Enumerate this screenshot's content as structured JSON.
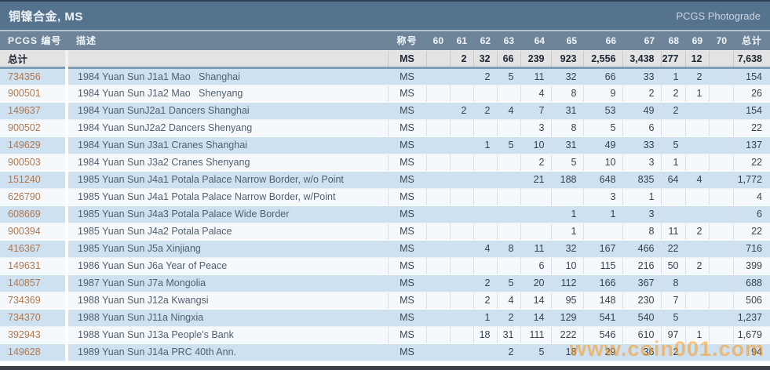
{
  "titlebar": {
    "title": "铜镍合金, MS",
    "right_label": "PCGS Photograde"
  },
  "table": {
    "headers": {
      "pcgs_number": "PCGS 编号",
      "description": "描述",
      "designation": "称号",
      "grades": [
        "60",
        "61",
        "62",
        "63",
        "64",
        "65",
        "66",
        "67",
        "68",
        "69",
        "70"
      ],
      "total": "总计"
    },
    "totals_row": {
      "label": "总计",
      "description": "",
      "designation": "MS",
      "counts": [
        "",
        "2",
        "32",
        "66",
        "239",
        "923",
        "2,556",
        "3,438",
        "277",
        "12",
        ""
      ],
      "total": "7,638"
    },
    "rows": [
      {
        "pcgs_number": "734356",
        "description": "1984 Yuan Sun J1a1 Mao   Shanghai",
        "designation": "MS",
        "counts": [
          "",
          "",
          "2",
          "5",
          "11",
          "32",
          "66",
          "33",
          "1",
          "2",
          ""
        ],
        "total": "154"
      },
      {
        "pcgs_number": "900501",
        "description": "1984 Yuan Sun J1a2 Mao   Shenyang",
        "designation": "MS",
        "counts": [
          "",
          "",
          "",
          "",
          "4",
          "8",
          "9",
          "2",
          "2",
          "1",
          ""
        ],
        "total": "26"
      },
      {
        "pcgs_number": "149637",
        "description": "1984 Yuan SunJ2a1 Dancers Shanghai",
        "designation": "MS",
        "counts": [
          "",
          "2",
          "2",
          "4",
          "7",
          "31",
          "53",
          "49",
          "2",
          "",
          ""
        ],
        "total": "154"
      },
      {
        "pcgs_number": "900502",
        "description": "1984 Yuan SunJ2a2 Dancers Shenyang",
        "designation": "MS",
        "counts": [
          "",
          "",
          "",
          "",
          "3",
          "8",
          "5",
          "6",
          "",
          "",
          ""
        ],
        "total": "22"
      },
      {
        "pcgs_number": "149629",
        "description": "1984 Yuan Sun J3a1 Cranes Shanghai",
        "designation": "MS",
        "counts": [
          "",
          "",
          "1",
          "5",
          "10",
          "31",
          "49",
          "33",
          "5",
          "",
          ""
        ],
        "total": "137"
      },
      {
        "pcgs_number": "900503",
        "description": "1984 Yuan Sun J3a2 Cranes Shenyang",
        "designation": "MS",
        "counts": [
          "",
          "",
          "",
          "",
          "2",
          "5",
          "10",
          "3",
          "1",
          "",
          ""
        ],
        "total": "22"
      },
      {
        "pcgs_number": "151240",
        "description": "1985 Yuan Sun J4a1 Potala Palace Narrow Border, w/o Point",
        "designation": "MS",
        "counts": [
          "",
          "",
          "",
          "",
          "21",
          "188",
          "648",
          "835",
          "64",
          "4",
          ""
        ],
        "total": "1,772"
      },
      {
        "pcgs_number": "626790",
        "description": "1985 Yuan Sun J4a1 Potala Palace Narrow Border, w/Point",
        "designation": "MS",
        "counts": [
          "",
          "",
          "",
          "",
          "",
          "",
          "3",
          "1",
          "",
          "",
          ""
        ],
        "total": "4"
      },
      {
        "pcgs_number": "608669",
        "description": "1985 Yuan Sun J4a3 Potala Palace Wide Border",
        "designation": "MS",
        "counts": [
          "",
          "",
          "",
          "",
          "",
          "1",
          "1",
          "3",
          "",
          "",
          ""
        ],
        "total": "6"
      },
      {
        "pcgs_number": "900394",
        "description": "1985 Yuan Sun J4a2 Potala Palace",
        "designation": "MS",
        "counts": [
          "",
          "",
          "",
          "",
          "",
          "1",
          "",
          "8",
          "11",
          "2",
          ""
        ],
        "total": "22"
      },
      {
        "pcgs_number": "416367",
        "description": "1985 Yuan Sun J5a Xinjiang",
        "designation": "MS",
        "counts": [
          "",
          "",
          "4",
          "8",
          "11",
          "32",
          "167",
          "466",
          "22",
          "",
          ""
        ],
        "total": "716"
      },
      {
        "pcgs_number": "149631",
        "description": "1986 Yuan Sun J6a Year of Peace",
        "designation": "MS",
        "counts": [
          "",
          "",
          "",
          "",
          "6",
          "10",
          "115",
          "216",
          "50",
          "2",
          ""
        ],
        "total": "399"
      },
      {
        "pcgs_number": "140857",
        "description": "1987 Yuan Sun J7a Mongolia",
        "designation": "MS",
        "counts": [
          "",
          "",
          "2",
          "5",
          "20",
          "112",
          "166",
          "367",
          "8",
          "",
          ""
        ],
        "total": "688"
      },
      {
        "pcgs_number": "734369",
        "description": "1988 Yuan Sun J12a Kwangsi",
        "designation": "MS",
        "counts": [
          "",
          "",
          "2",
          "4",
          "14",
          "95",
          "148",
          "230",
          "7",
          "",
          ""
        ],
        "total": "506"
      },
      {
        "pcgs_number": "734370",
        "description": "1988 Yuan Sun J11a Ningxia",
        "designation": "MS",
        "counts": [
          "",
          "",
          "1",
          "2",
          "14",
          "129",
          "541",
          "540",
          "5",
          "",
          ""
        ],
        "total": "1,237"
      },
      {
        "pcgs_number": "392943",
        "description": "1988 Yuan Sun J13a People's Bank",
        "designation": "MS",
        "counts": [
          "",
          "",
          "18",
          "31",
          "111",
          "222",
          "546",
          "610",
          "97",
          "1",
          ""
        ],
        "total": "1,679"
      },
      {
        "pcgs_number": "149628",
        "description": "1989 Yuan Sun J14a PRC 40th Ann.",
        "designation": "MS",
        "counts": [
          "",
          "",
          "",
          "2",
          "5",
          "18",
          "29",
          "36",
          "2",
          "",
          ""
        ],
        "total": "94"
      }
    ]
  },
  "watermark": "www.coin001.com",
  "colors": {
    "titlebar_bg": "#56738e",
    "header_bg": "#6d8499",
    "row_blue": "#cee1f1",
    "row_white": "#f6f9fc",
    "totals_bg": "#e3e3e3",
    "pcgs_number_link": "#b0774d",
    "watermark_orange": "#ff9718",
    "bottom_bar": "#3a3e42"
  }
}
